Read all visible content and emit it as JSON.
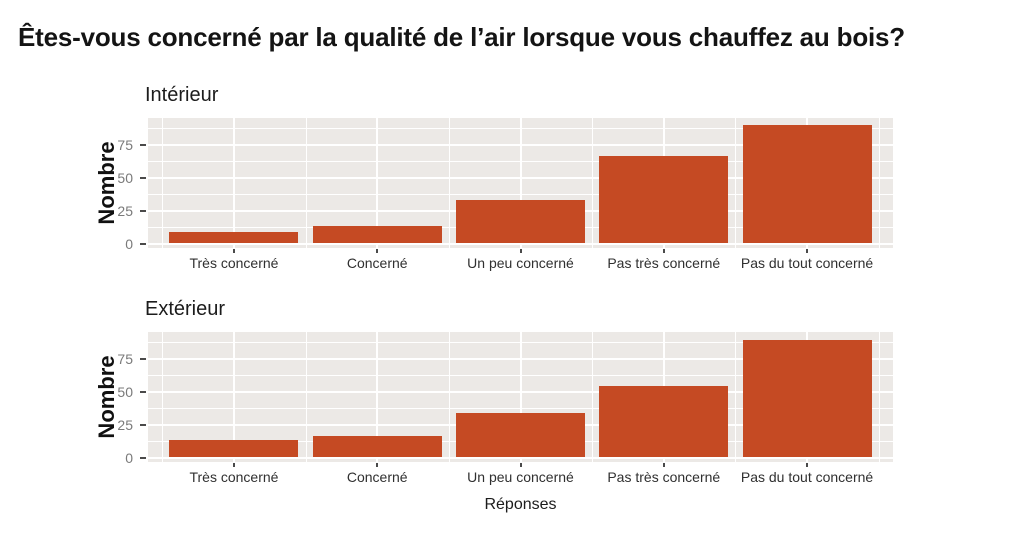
{
  "title": "Êtes-vous concerné par la qualité de l’air lorsque vous chauffez au bois?",
  "x_axis_title": "Réponses",
  "y_axis_title": "Nombre",
  "colors": {
    "bar": "#C54A23",
    "panel_background": "#ECE9E6",
    "gridline": "#FFFFFF",
    "y_tick_label": "#7A7A7A",
    "x_tick_label": "#303030",
    "title_text": "#141414"
  },
  "chart_data": [
    {
      "type": "bar",
      "facet": "Intérieur",
      "categories": [
        "Très concerné",
        "Concerné",
        "Un peu concerné",
        "Pas très concerné",
        "Pas du tout concerné"
      ],
      "values": [
        9,
        13,
        33,
        66,
        90
      ],
      "xlabel": "Réponses",
      "ylabel": "Nombre",
      "yticks": [
        0,
        25,
        50,
        75
      ],
      "minor_yticks": [
        12.5,
        37.5,
        62.5,
        87.5
      ],
      "ylim": [
        -4.5,
        95
      ],
      "grid": "on",
      "legend": "none"
    },
    {
      "type": "bar",
      "facet": "Extérieur",
      "categories": [
        "Très concerné",
        "Concerné",
        "Un peu concerné",
        "Pas très concerné",
        "Pas du tout concerné"
      ],
      "values": [
        13,
        16,
        34,
        54,
        89
      ],
      "xlabel": "Réponses",
      "ylabel": "Nombre",
      "yticks": [
        0,
        25,
        50,
        75
      ],
      "minor_yticks": [
        12.5,
        37.5,
        62.5,
        87.5
      ],
      "ylim": [
        -4.5,
        95
      ],
      "grid": "on",
      "legend": "none"
    }
  ]
}
